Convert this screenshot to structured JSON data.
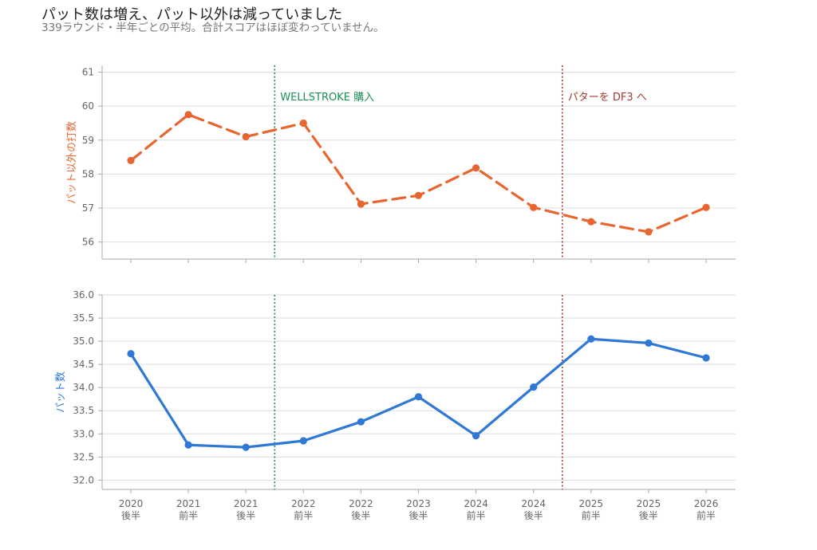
{
  "header": {
    "title": "パット数は増え、パット以外は減っていました",
    "subtitle": "339ラウンド・半年ごとの平均。合計スコアはほぼ変わっていません。"
  },
  "colors": {
    "top_series": "#e8652f",
    "bottom_series": "#2f78d4",
    "wellstroke_line": "#1a8f57",
    "df3_line": "#a23a34",
    "grid": "#dddddd",
    "axis": "#aaaaaa"
  },
  "chart_data": [
    {
      "type": "line",
      "ylabel": "パット以外の打数",
      "ylim": [
        55.5,
        61.2
      ],
      "yticks": [
        56,
        57,
        58,
        59,
        60,
        61
      ],
      "categories": [
        [
          "2020",
          "後半"
        ],
        [
          "2021",
          "前半"
        ],
        [
          "2021",
          "後半"
        ],
        [
          "2022",
          "前半"
        ],
        [
          "2022",
          "後半"
        ],
        [
          "2023",
          "後半"
        ],
        [
          "2024",
          "前半"
        ],
        [
          "2024",
          "後半"
        ],
        [
          "2025",
          "前半"
        ],
        [
          "2025",
          "後半"
        ],
        [
          "2026",
          "前半"
        ]
      ],
      "series": [
        {
          "values": [
            58.4,
            59.75,
            59.1,
            59.5,
            57.12,
            57.37,
            58.18,
            57.02,
            56.6,
            56.3,
            57.02
          ]
        }
      ],
      "line_style": "dashed",
      "annotations": [
        {
          "text": "WELLSTROKE 購入",
          "x_between": [
            2,
            3
          ]
        },
        {
          "text": "パターを DF3 へ",
          "x_between": [
            7,
            8
          ]
        }
      ],
      "grid": true
    },
    {
      "type": "line",
      "ylabel": "パット数",
      "ylim": [
        31.8,
        36.0
      ],
      "yticks": [
        32.0,
        32.5,
        33.0,
        33.5,
        34.0,
        34.5,
        35.0,
        35.5,
        36.0
      ],
      "series": [
        {
          "values": [
            34.73,
            32.76,
            32.71,
            32.85,
            33.26,
            33.8,
            32.96,
            34.01,
            35.05,
            34.96,
            34.64
          ]
        }
      ],
      "line_style": "solid",
      "grid": true
    }
  ]
}
